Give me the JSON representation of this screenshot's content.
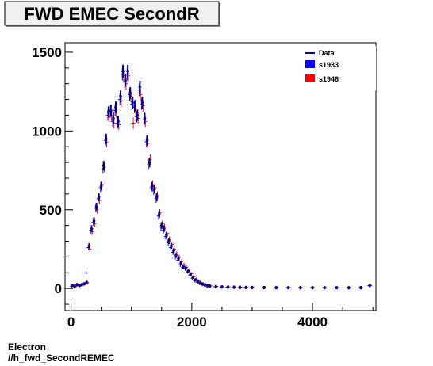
{
  "chart_data": {
    "type": "scatter",
    "title": "FWD EMEC SecondR",
    "xlim": [
      -100,
      5050
    ],
    "ylim": [
      -140,
      1560
    ],
    "x_ticks": [
      0,
      2000,
      4000
    ],
    "x_tick_labels": [
      "0",
      "2000",
      "4000"
    ],
    "y_ticks": [
      0,
      500,
      1000,
      1500
    ],
    "y_tick_labels": [
      "0",
      "500",
      "1000",
      "1500"
    ],
    "legend_position": "top-right",
    "legend": [
      {
        "label": "Data",
        "style": "line",
        "color": "#000080"
      },
      {
        "label": "s1933",
        "style": "box",
        "color": "#0000ff"
      },
      {
        "label": "s1946",
        "style": "box",
        "color": "#ff0000"
      }
    ],
    "series": [
      {
        "name": "Data",
        "color": "#000080",
        "x": [
          20,
          60,
          100,
          140,
          180,
          220,
          260,
          300,
          340,
          380,
          420,
          460,
          500,
          540,
          580,
          620,
          660,
          700,
          740,
          780,
          820,
          860,
          900,
          940,
          980,
          1020,
          1060,
          1100,
          1140,
          1180,
          1220,
          1260,
          1300,
          1340,
          1380,
          1420,
          1460,
          1500,
          1540,
          1580,
          1620,
          1660,
          1700,
          1740,
          1780,
          1820,
          1860,
          1900,
          1940,
          1980,
          2020,
          2060,
          2100,
          2140,
          2180,
          2220,
          2260,
          2300,
          2400,
          2500,
          2600,
          2700,
          2800,
          2900,
          3000,
          3200,
          3400,
          3600,
          3800,
          4000,
          4200,
          4400,
          4600,
          4800,
          4950
        ],
        "y": [
          20,
          15,
          25,
          20,
          25,
          30,
          40,
          270,
          380,
          430,
          520,
          580,
          650,
          780,
          950,
          1120,
          1130,
          1080,
          1150,
          1060,
          1220,
          1380,
          1320,
          1380,
          1240,
          1180,
          1160,
          1100,
          1280,
          1180,
          1080,
          940,
          800,
          650,
          630,
          580,
          470,
          400,
          380,
          340,
          300,
          270,
          240,
          210,
          190,
          160,
          140,
          130,
          110,
          90,
          70,
          55,
          45,
          35,
          28,
          22,
          18,
          15,
          12,
          10,
          9,
          8,
          7,
          7,
          6,
          6,
          5,
          5,
          5,
          5,
          5,
          5,
          5,
          5,
          20
        ]
      },
      {
        "name": "s1933",
        "color": "#0000ff",
        "x": [
          20,
          60,
          100,
          140,
          180,
          220,
          260,
          300,
          340,
          380,
          420,
          460,
          500,
          540,
          580,
          620,
          660,
          700,
          740,
          780,
          820,
          860,
          900,
          940,
          980,
          1020,
          1060,
          1100,
          1140,
          1180,
          1220,
          1260,
          1300,
          1340,
          1380,
          1420,
          1460,
          1500,
          1540,
          1580,
          1620,
          1660,
          1700,
          1740,
          1780,
          1820,
          1860,
          1900,
          1940,
          1980,
          2020,
          2060,
          2100,
          2140,
          2180,
          2220,
          2260,
          2300,
          2400,
          2500,
          2600,
          2700,
          2800,
          2900,
          3000,
          3200,
          3400,
          3600,
          3800,
          4000,
          4200,
          4400,
          4600,
          4800,
          4950
        ],
        "y": [
          15,
          12,
          20,
          18,
          22,
          28,
          100,
          260,
          370,
          420,
          510,
          570,
          640,
          760,
          940,
          1100,
          1120,
          1060,
          1130,
          1050,
          1200,
          1360,
          1310,
          1360,
          1230,
          1170,
          1150,
          1090,
          1260,
          1170,
          1070,
          930,
          790,
          640,
          620,
          570,
          460,
          390,
          370,
          330,
          290,
          260,
          230,
          200,
          180,
          150,
          135,
          125,
          105,
          85,
          65,
          50,
          40,
          32,
          25,
          20,
          16,
          13,
          11,
          9,
          8,
          7,
          6,
          6,
          5,
          5,
          5,
          5,
          5,
          5,
          5,
          5,
          5,
          5,
          18
        ]
      },
      {
        "name": "s1946",
        "color": "#ff0000",
        "x": [
          20,
          60,
          100,
          140,
          180,
          220,
          260,
          300,
          340,
          380,
          420,
          460,
          500,
          540,
          580,
          620,
          660,
          700,
          740,
          780,
          820,
          860,
          900,
          940,
          980,
          1020,
          1060,
          1100,
          1140,
          1180,
          1220,
          1260,
          1300,
          1340,
          1380,
          1420,
          1460,
          1500,
          1540,
          1580,
          1620,
          1660,
          1700,
          1740,
          1780,
          1820,
          1860,
          1900,
          1940,
          1980,
          2020,
          2060,
          2100,
          2140,
          2180,
          2220,
          2260,
          2300,
          2400,
          2500,
          2600,
          2700,
          2800,
          2900,
          3000,
          3200,
          3400,
          3600,
          3800,
          4000,
          4200,
          4400,
          4600,
          4800,
          4950
        ],
        "y": [
          18,
          14,
          22,
          19,
          24,
          29,
          35,
          250,
          360,
          410,
          500,
          560,
          660,
          770,
          930,
          1090,
          1100,
          1050,
          1120,
          1040,
          1190,
          1350,
          1300,
          1350,
          1220,
          1050,
          1140,
          1080,
          1230,
          1160,
          1060,
          920,
          820,
          660,
          640,
          590,
          480,
          410,
          390,
          350,
          310,
          280,
          250,
          220,
          200,
          170,
          150,
          135,
          115,
          95,
          75,
          60,
          48,
          38,
          30,
          24,
          19,
          16,
          13,
          11,
          10,
          9,
          8,
          7,
          7,
          6,
          6,
          6,
          5,
          5,
          5,
          5,
          5,
          5,
          19
        ]
      }
    ]
  },
  "footer": {
    "line1": "Electron",
    "line2": "//h_fwd_SecondREMEC"
  }
}
